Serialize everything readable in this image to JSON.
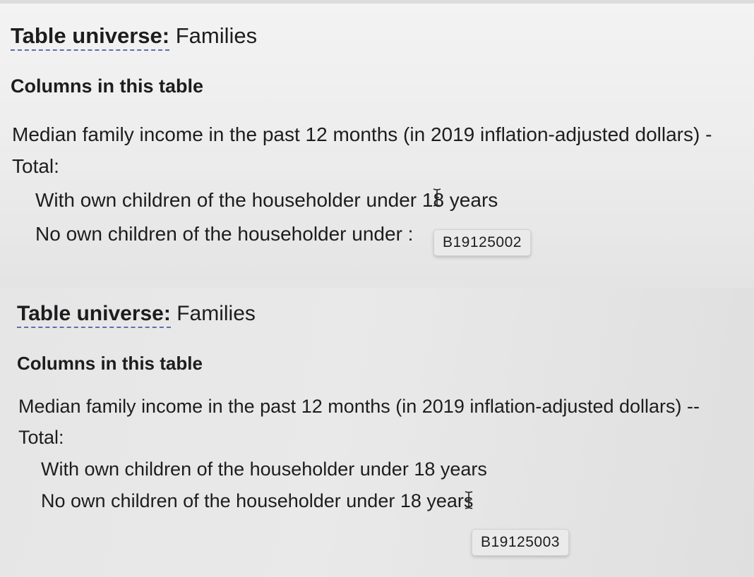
{
  "top": {
    "universe_label": "Table universe:",
    "universe_value": "Families",
    "columns_heading": "Columns in this table",
    "row_median": "Median family income in the past 12 months (in 2019 inflation-adjusted dollars) -",
    "row_total": "Total:",
    "row_with_children": "With own children of the householder under 18 years",
    "row_no_children": "No own children of the householder under :",
    "tooltip_code": "B19125002"
  },
  "bottom": {
    "universe_label": "Table universe:",
    "universe_value": "Families",
    "columns_heading": "Columns in this table",
    "row_median": "Median family income in the past 12 months (in 2019 inflation-adjusted dollars) --",
    "row_total": "Total:",
    "row_with_children": "With own children of the householder under 18 years",
    "row_no_children": "No own children of the householder under 18 years",
    "tooltip_code": "B19125003"
  },
  "icons": {
    "cursor": "text-cursor-icon"
  }
}
